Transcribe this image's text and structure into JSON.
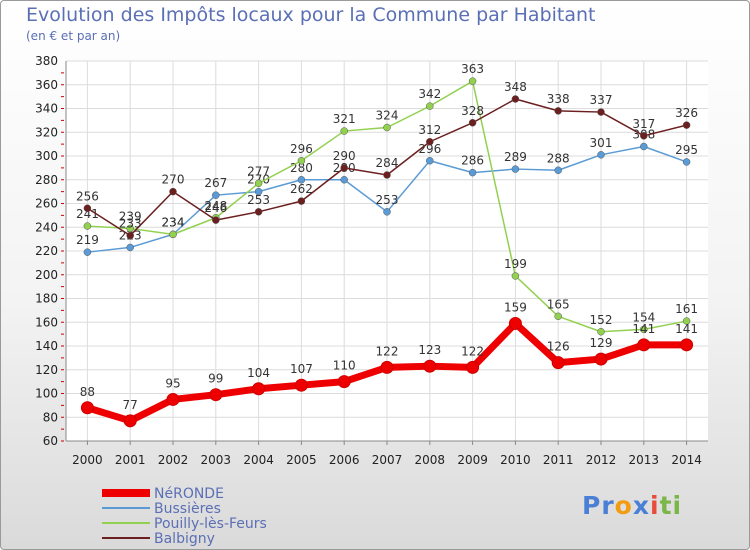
{
  "chart_data": {
    "type": "line",
    "title": "Evolution des Impôts locaux pour la Commune par Habitant",
    "subtitle": "(en € et par an)",
    "x": [
      "2000",
      "2001",
      "2002",
      "2003",
      "2004",
      "2005",
      "2006",
      "2007",
      "2008",
      "2009",
      "2010",
      "2011",
      "2012",
      "2013",
      "2014"
    ],
    "ylim": [
      60,
      380
    ],
    "yticks": [
      60,
      80,
      100,
      120,
      140,
      160,
      180,
      200,
      220,
      240,
      260,
      280,
      300,
      320,
      340,
      360,
      380
    ],
    "grid": true,
    "legend_position": "bottom-left",
    "series": [
      {
        "name": "NéRONDE",
        "color": "#ee0000",
        "values": [
          88,
          77,
          95,
          99,
          104,
          107,
          110,
          122,
          123,
          122,
          159,
          126,
          129,
          141,
          141
        ]
      },
      {
        "name": "Bussières",
        "color": "#5b9bd5",
        "values": [
          219,
          223,
          234,
          267,
          270,
          280,
          280,
          253,
          296,
          286,
          289,
          288,
          301,
          308,
          295
        ]
      },
      {
        "name": "Pouilly-lès-Feurs",
        "color": "#92d050",
        "values": [
          241,
          239,
          234,
          248,
          277,
          296,
          321,
          324,
          342,
          363,
          199,
          165,
          152,
          154,
          161
        ]
      },
      {
        "name": "Balbigny",
        "color": "#6b1f1f",
        "values": [
          256,
          233,
          270,
          246,
          253,
          262,
          290,
          284,
          312,
          328,
          348,
          338,
          337,
          317,
          326
        ]
      }
    ]
  },
  "logo": {
    "text": "Proxiti",
    "letters": [
      "P",
      "r",
      "o",
      "x",
      "i",
      "t",
      "i"
    ],
    "colors": [
      "#4a7fd6",
      "#4a7fd6",
      "#f39c12",
      "#4a7fd6",
      "#e74c3c",
      "#7ab648",
      "#7ab648"
    ]
  }
}
